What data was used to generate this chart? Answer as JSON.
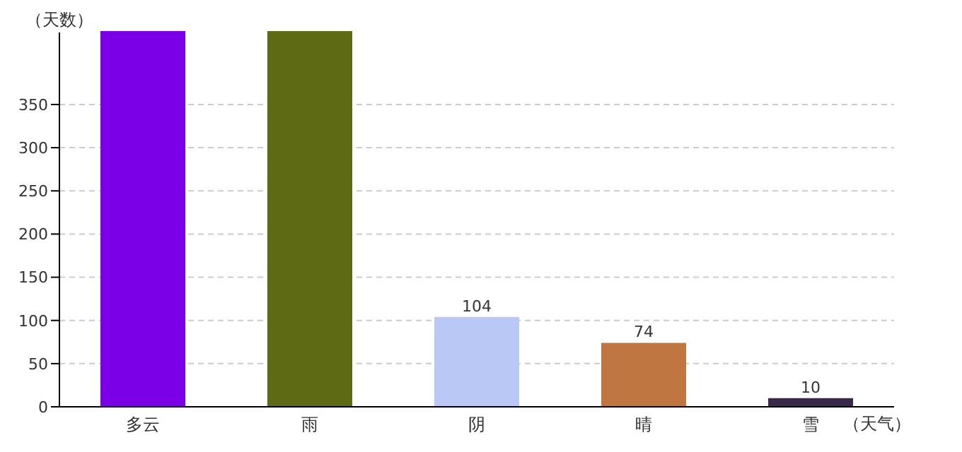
{
  "chart_data": {
    "type": "bar",
    "xlabel": "（天气）",
    "ylabel": "（天数）",
    "categories": [
      "多云",
      "雨",
      "阴",
      "晴",
      "雪"
    ],
    "values": [
      435,
      435,
      104,
      74,
      10
    ],
    "colors": [
      "#7b00e8",
      "#5e6b14",
      "#bac8f5",
      "#c07640",
      "#3a2848"
    ],
    "value_labels": [
      null,
      null,
      "104",
      "74",
      "10"
    ],
    "ylim": [
      0,
      435
    ],
    "yticks": [
      0,
      50,
      100,
      150,
      200,
      250,
      300,
      350
    ],
    "grid": "y"
  }
}
